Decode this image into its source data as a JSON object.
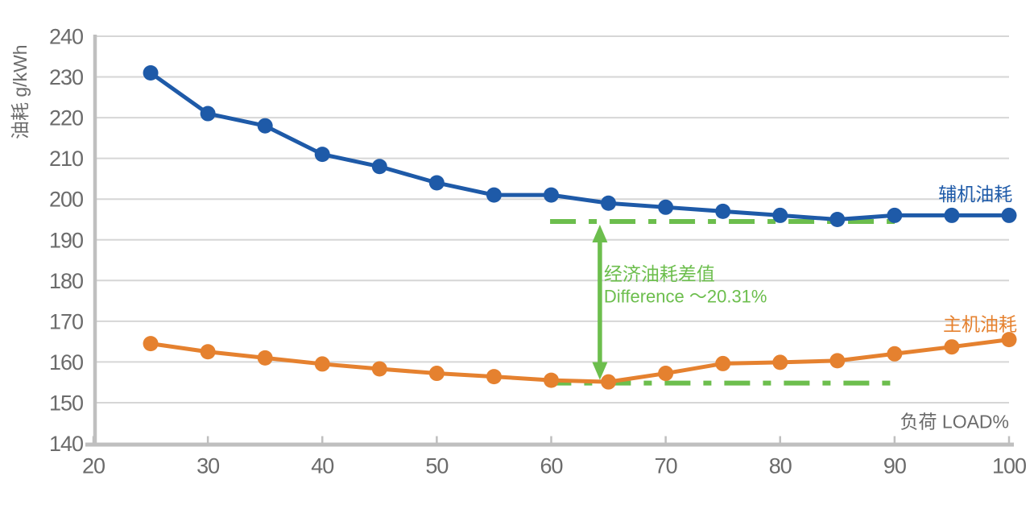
{
  "chart_data": {
    "type": "line",
    "title": "",
    "xlabel": "负荷 LOAD%",
    "ylabel": "油耗 g/kWh",
    "xlim": [
      20,
      100
    ],
    "ylim": [
      140,
      240
    ],
    "x_ticks": [
      20,
      30,
      40,
      50,
      60,
      70,
      80,
      90,
      100
    ],
    "y_ticks": [
      140,
      150,
      160,
      170,
      180,
      190,
      200,
      210,
      220,
      230,
      240
    ],
    "grid": "horizontal",
    "legend_position": "inline-right",
    "x": [
      25,
      30,
      35,
      40,
      45,
      50,
      55,
      60,
      65,
      70,
      75,
      80,
      85,
      90,
      95,
      100
    ],
    "series": [
      {
        "key": "aux",
        "name": "辅机油耗",
        "color": "#1E5AA8",
        "values": [
          231,
          221,
          218,
          211,
          208,
          204,
          201,
          201,
          199,
          198,
          197,
          196,
          195,
          196,
          196,
          196
        ],
        "label_x": 100.3,
        "label_y": 199.6
      },
      {
        "key": "main",
        "name": "主机油耗",
        "color": "#E5812F",
        "values": [
          164.5,
          162.5,
          161,
          159.5,
          158.3,
          157.2,
          156.4,
          155.5,
          155.1,
          157.2,
          159.6,
          159.9,
          160.3,
          162,
          163.7,
          165.5
        ],
        "label_x": 100.7,
        "label_y": 167.7
      }
    ],
    "annotation": {
      "color": "#6CBE4D",
      "upper_ref_line": {
        "y": 194.5,
        "x1": 59.9,
        "x2": 90.8
      },
      "lower_ref_line": {
        "y": 154.8,
        "x1": 59.5,
        "x2": 90.1
      },
      "arrow": {
        "x": 64.25,
        "y_top": 194.5,
        "y_bottom": 154.8
      },
      "label_line1": "经济油耗差值",
      "label_line2": "Difference ～20.31%",
      "label_x": 64.6,
      "label_y1": 180.1,
      "label_y2": 174.6
    },
    "colors": {
      "grid": "#D6D6D6",
      "axis": "#BFBFBF",
      "tick_label": "#6B6B6B",
      "axis_title": "#6B6B6B"
    }
  }
}
